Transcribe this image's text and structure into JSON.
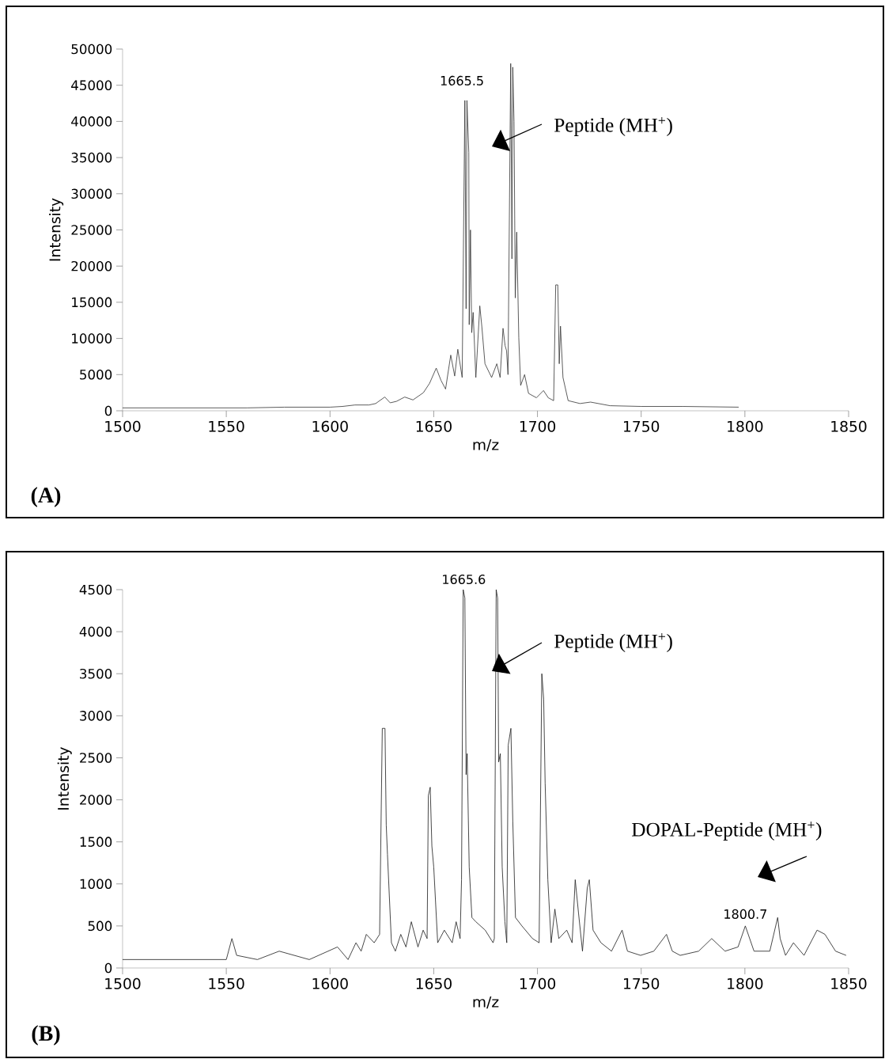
{
  "chart_data": [
    {
      "type": "line",
      "xlabel": "m/z",
      "ylabel": "Intensity",
      "xlim": [
        1500,
        1850
      ],
      "ylim": [
        0,
        50000
      ],
      "xticks": [
        1500,
        1550,
        1600,
        1650,
        1700,
        1750,
        1800,
        1850
      ],
      "yticks": [
        0,
        5000,
        10000,
        15000,
        20000,
        25000,
        30000,
        35000,
        40000,
        45000,
        50000
      ],
      "series": [
        {
          "color": "#333333",
          "x": [
            1500,
            1520,
            1540,
            1560,
            1578,
            1590,
            1600,
            1606,
            1612,
            1618.8,
            1622,
            1626.4,
            1629,
            1632,
            1636,
            1640,
            1645,
            1648,
            1651.2,
            1653.5,
            1655.7,
            1658.2,
            1660.1,
            1661.6,
            1663.7,
            1665.0,
            1665.6,
            1666.0,
            1666.9,
            1667.1,
            1667.7,
            1668.3,
            1669.0,
            1670.3,
            1672.2,
            1673.2,
            1674.7,
            1677.9,
            1680.4,
            1682.0,
            1683.4,
            1684.4,
            1685.1,
            1685.8,
            1687.1,
            1687.7,
            1688.1,
            1688.7,
            1689.3,
            1690.0,
            1691.0,
            1691.9,
            1693.8,
            1695.7,
            1699.5,
            1702.9,
            1705.2,
            1707.8,
            1708.8,
            1709.8,
            1710.5,
            1711.1,
            1712.3,
            1714.8,
            1720.5,
            1725.6,
            1735,
            1750,
            1770,
            1797
          ],
          "values": [
            400,
            400,
            400,
            400,
            500,
            500,
            500,
            600,
            800,
            800,
            1000,
            1900,
            1100,
            1300,
            1900,
            1500,
            2500,
            3800,
            5900,
            4200,
            3000,
            7700,
            4800,
            8500,
            4600,
            42900,
            14100,
            42900,
            35700,
            11900,
            25000,
            10800,
            13600,
            4600,
            14500,
            11600,
            6500,
            4600,
            6500,
            4600,
            11400,
            9000,
            8300,
            5000,
            48000,
            21000,
            47500,
            40000,
            15600,
            24700,
            10100,
            3500,
            5000,
            2400,
            1800,
            2800,
            1800,
            1400,
            17400,
            17400,
            6500,
            11700,
            4600,
            1400,
            1000,
            1200,
            700,
            600,
            600,
            500
          ]
        }
      ],
      "annotations": [
        {
          "text": "1665.5",
          "x": 1665.5,
          "y": 42900
        },
        "Peptide (MH$^{+}$)",
        "(A)"
      ]
    },
    {
      "type": "line",
      "xlabel": "m/z",
      "ylabel": "Intensity",
      "xlim": [
        1500,
        1850
      ],
      "ylim": [
        0,
        4500
      ],
      "xticks": [
        1500,
        1550,
        1600,
        1650,
        1700,
        1750,
        1800,
        1850
      ],
      "yticks": [
        0,
        500,
        1000,
        1500,
        2000,
        2500,
        3000,
        3500,
        4000,
        4500
      ],
      "series": [
        {
          "color": "#1a1a1a",
          "x": [
            1500,
            1520,
            1540,
            1550,
            1552.7,
            1555,
            1565,
            1575.5,
            1590,
            1603.6,
            1608.7,
            1612.5,
            1615,
            1617.5,
            1621.3,
            1623.9,
            1625.2,
            1626.5,
            1627.1,
            1627.7,
            1629.6,
            1631.5,
            1634.1,
            1636.6,
            1639.2,
            1642.4,
            1644.9,
            1646.8,
            1647.4,
            1648.3,
            1649.1,
            1650,
            1651.9,
            1655.1,
            1658.9,
            1660.8,
            1662.7,
            1663.4,
            1664.2,
            1665.0,
            1665.6,
            1666.1,
            1667.1,
            1668.4,
            1670.3,
            1674.8,
            1678.6,
            1679.2,
            1680.1,
            1680.8,
            1681.3,
            1682.1,
            1683,
            1684.3,
            1685.2,
            1685.9,
            1687.2,
            1688.1,
            1689.4,
            1692.5,
            1697.6,
            1700.8,
            1702.1,
            1703,
            1703.7,
            1705,
            1706.6,
            1708.4,
            1710.3,
            1714.1,
            1716.7,
            1718.2,
            1719.8,
            1721.7,
            1724,
            1725,
            1726.8,
            1730.6,
            1735.7,
            1740.8,
            1743.4,
            1749.7,
            1756.1,
            1762.2,
            1765,
            1768.8,
            1777.7,
            1784,
            1790.4,
            1796.7,
            1800.2,
            1804.4,
            1812,
            1815.8,
            1817,
            1819.6,
            1823.4,
            1828.5,
            1834.8,
            1838.6,
            1843.7,
            1848.8
          ],
          "values": [
            100,
            100,
            100,
            100,
            350,
            150,
            100,
            200,
            100,
            250,
            100,
            300,
            200,
            400,
            300,
            400,
            2850,
            2850,
            1700,
            1350,
            300,
            200,
            400,
            250,
            550,
            250,
            450,
            350,
            2050,
            2150,
            1450,
            1200,
            300,
            450,
            300,
            550,
            350,
            1050,
            4500,
            4400,
            2300,
            2550,
            1200,
            600,
            550,
            450,
            300,
            350,
            4500,
            4400,
            2450,
            2550,
            1200,
            550,
            300,
            2650,
            2850,
            1750,
            600,
            500,
            350,
            300,
            3500,
            3200,
            2200,
            1050,
            300,
            700,
            350,
            450,
            300,
            1050,
            650,
            200,
            950,
            1050,
            450,
            300,
            200,
            450,
            200,
            150,
            200,
            400,
            200,
            150,
            200,
            350,
            200,
            250,
            500,
            200,
            200,
            600,
            350,
            150,
            300,
            150,
            450,
            400,
            200,
            150
          ]
        }
      ],
      "annotations": [
        {
          "text": "1665.6",
          "x": 1665.6,
          "y": 4500
        },
        "Peptide (MH$^{+}$)",
        "DOPAL-Peptide (MH$^{+}$)",
        {
          "text": "1800.7",
          "x": 1800.2,
          "y": 500
        },
        "(B)"
      ]
    }
  ]
}
